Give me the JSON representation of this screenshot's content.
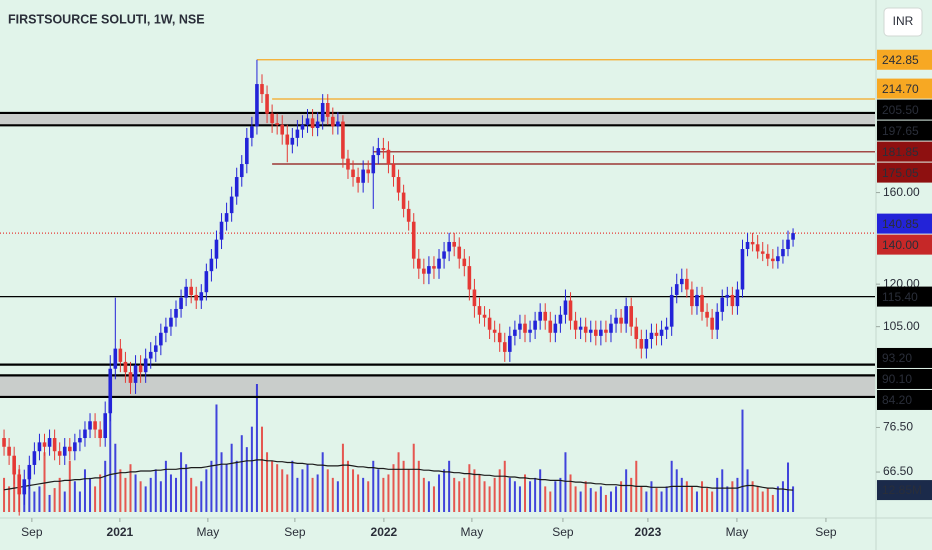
{
  "chart_data": {
    "type": "candlestick",
    "title": "FIRSTSOURCE SOLUTI, 1W, NSE",
    "currency": "INR",
    "log": true,
    "xlim": [
      -0.8,
      172.2
    ],
    "ylim": [
      57.2,
      293
    ],
    "xticks": [
      {
        "value": 5.5,
        "label": "Sep"
      },
      {
        "value": 22.9,
        "label": "2021"
      },
      {
        "value": 40.3,
        "label": "May"
      },
      {
        "value": 57.5,
        "label": "Sep"
      },
      {
        "value": 75.1,
        "label": "2022"
      },
      {
        "value": 92.5,
        "label": "May"
      },
      {
        "value": 110.5,
        "label": "Sep"
      },
      {
        "value": 127.3,
        "label": "2023"
      },
      {
        "value": 144.9,
        "label": "May"
      },
      {
        "value": 162.5,
        "label": "Sep"
      }
    ],
    "yticks": [
      {
        "value": 160,
        "label": "160.00"
      },
      {
        "value": 120,
        "label": "120.00"
      },
      {
        "value": 105,
        "label": "105.00"
      },
      {
        "value": 76.5,
        "label": "76.50"
      },
      {
        "value": 66.5,
        "label": "66.50"
      }
    ],
    "up_color": "#2323d8",
    "down_color": "#e53935",
    "open": [
      74,
      72,
      70,
      66,
      62,
      65,
      68,
      71,
      73,
      72,
      74,
      71,
      70,
      72,
      71,
      73,
      74,
      76,
      78,
      76,
      74,
      80,
      92,
      98,
      94,
      91,
      88,
      93,
      91,
      95,
      97,
      99,
      103,
      105,
      108,
      111,
      115,
      119,
      116,
      114,
      117,
      125,
      130,
      138,
      146,
      150,
      158,
      168,
      175,
      190,
      197,
      225,
      218,
      205,
      199,
      198,
      192,
      186,
      190,
      195,
      198,
      202,
      196,
      200,
      212,
      203,
      197,
      200,
      178,
      172,
      168,
      165,
      172,
      170,
      180,
      184,
      183,
      175,
      168,
      160,
      152,
      146,
      130,
      126,
      124,
      127,
      126,
      130,
      133,
      137,
      135,
      130,
      127,
      118,
      112,
      109,
      108,
      104,
      103,
      100,
      97,
      102,
      104,
      106,
      103,
      104,
      107,
      110,
      107,
      103,
      106,
      109,
      114,
      107,
      104,
      105,
      103,
      104,
      102,
      104,
      103,
      106,
      108,
      106,
      112,
      105,
      101,
      98,
      101,
      103,
      102,
      104,
      105,
      116,
      120,
      122,
      118,
      112,
      116,
      110,
      108,
      104,
      110,
      115,
      116,
      112,
      118,
      134,
      137,
      136,
      133,
      132,
      130,
      129,
      131,
      134,
      138
    ],
    "high": [
      76,
      74,
      72,
      68,
      67,
      70,
      73,
      75,
      75,
      76,
      76,
      73,
      74,
      74,
      75,
      76,
      78,
      80,
      80,
      78,
      83,
      96,
      115,
      101,
      97,
      94,
      96,
      96,
      98,
      100,
      102,
      106,
      108,
      111,
      114,
      118,
      122,
      122,
      119,
      120,
      128,
      134,
      142,
      150,
      155,
      163,
      173,
      180,
      196,
      203,
      242.85,
      232,
      224,
      211,
      205,
      204,
      198,
      196,
      201,
      204,
      208,
      208,
      206,
      218,
      218,
      209,
      206,
      204,
      183,
      177,
      173,
      177,
      177,
      185,
      190,
      190,
      188,
      180,
      172,
      164,
      156,
      150,
      134,
      130,
      131,
      131,
      134,
      137,
      141,
      141,
      139,
      134,
      131,
      122,
      115,
      112,
      111,
      107,
      106,
      103,
      105,
      107,
      109,
      109,
      107,
      110,
      113,
      113,
      110,
      109,
      112,
      118,
      117,
      110,
      108,
      108,
      107,
      107,
      107,
      107,
      109,
      111,
      111,
      115,
      115,
      108,
      104,
      104,
      106,
      106,
      107,
      108,
      119,
      124,
      126,
      126,
      121,
      119,
      119,
      113,
      111,
      113,
      118,
      119,
      119,
      121,
      138,
      141,
      141,
      140,
      137,
      136,
      134,
      135,
      138,
      142,
      143
    ],
    "low": [
      70,
      68,
      64,
      58,
      60,
      63,
      66,
      69,
      70,
      70,
      69,
      68,
      68,
      69,
      69,
      71,
      72,
      74,
      74,
      72,
      72,
      78,
      89,
      91,
      88,
      85,
      85,
      88,
      88,
      92,
      94,
      96,
      100,
      102,
      105,
      108,
      112,
      113,
      111,
      111,
      114,
      121,
      126,
      134,
      142,
      146,
      154,
      163,
      170,
      185,
      192,
      212,
      199,
      193,
      192,
      186,
      176,
      181,
      185,
      190,
      193,
      191,
      191,
      195,
      198,
      192,
      192,
      173,
      167,
      163,
      160,
      160,
      165,
      152,
      175,
      178,
      170,
      163,
      156,
      148,
      142,
      126,
      122,
      120,
      120,
      122,
      122,
      126,
      129,
      131,
      126,
      123,
      114,
      108,
      106,
      105,
      101,
      100,
      97,
      94,
      94,
      99,
      101,
      100,
      100,
      101,
      104,
      104,
      100,
      100,
      103,
      106,
      104,
      101,
      101,
      100,
      100,
      99,
      99,
      100,
      100,
      103,
      103,
      103,
      102,
      98,
      95,
      95,
      98,
      99,
      99,
      101,
      102,
      113,
      117,
      115,
      109,
      109,
      107,
      105,
      101,
      101,
      107,
      112,
      109,
      109,
      115,
      131,
      133,
      130,
      129,
      127,
      126,
      126,
      128,
      131,
      135
    ],
    "close": [
      72,
      70,
      66,
      62,
      65,
      68,
      71,
      73,
      72,
      74,
      71,
      70,
      72,
      71,
      73,
      74,
      76,
      78,
      76,
      74,
      80,
      92,
      98,
      94,
      91,
      88,
      93,
      91,
      95,
      97,
      99,
      103,
      105,
      108,
      111,
      115,
      119,
      116,
      114,
      117,
      125,
      130,
      138,
      146,
      150,
      158,
      168,
      175,
      190,
      197,
      225,
      218,
      205,
      199,
      198,
      192,
      186,
      190,
      195,
      198,
      202,
      196,
      200,
      212,
      203,
      197,
      200,
      178,
      172,
      168,
      165,
      172,
      170,
      180,
      184,
      183,
      175,
      168,
      160,
      152,
      146,
      130,
      126,
      124,
      127,
      126,
      130,
      133,
      137,
      135,
      130,
      127,
      118,
      112,
      109,
      108,
      104,
      103,
      100,
      97,
      102,
      104,
      106,
      103,
      104,
      107,
      110,
      107,
      103,
      106,
      109,
      114,
      107,
      104,
      105,
      103,
      104,
      102,
      104,
      103,
      106,
      108,
      106,
      112,
      105,
      101,
      98,
      101,
      103,
      102,
      104,
      105,
      116,
      120,
      122,
      118,
      112,
      116,
      110,
      108,
      104,
      110,
      115,
      116,
      112,
      118,
      134,
      137,
      136,
      133,
      132,
      130,
      129,
      131,
      134,
      138,
      140.85
    ],
    "volume": {
      "ylim": [
        0,
        300
      ],
      "ma_color": "#1b1b1b",
      "values": [
        20,
        15,
        30,
        25,
        18,
        22,
        12,
        15,
        35,
        10,
        14,
        20,
        12,
        30,
        18,
        12,
        25,
        20,
        15,
        22,
        30,
        75,
        40,
        25,
        20,
        28,
        22,
        18,
        15,
        20,
        25,
        18,
        30,
        22,
        20,
        35,
        28,
        20,
        15,
        18,
        25,
        30,
        63,
        35,
        28,
        40,
        30,
        45,
        38,
        50,
        75,
        50,
        35,
        30,
        28,
        25,
        22,
        30,
        20,
        25,
        28,
        20,
        22,
        35,
        25,
        20,
        18,
        40,
        30,
        25,
        22,
        20,
        18,
        30,
        25,
        20,
        22,
        28,
        35,
        30,
        25,
        40,
        30,
        20,
        18,
        15,
        22,
        25,
        30,
        20,
        18,
        20,
        28,
        25,
        22,
        18,
        15,
        20,
        25,
        30,
        20,
        18,
        15,
        22,
        18,
        20,
        25,
        15,
        12,
        18,
        20,
        35,
        22,
        15,
        12,
        18,
        14,
        12,
        15,
        10,
        12,
        15,
        18,
        25,
        20,
        30,
        15,
        12,
        18,
        14,
        12,
        15,
        30,
        25,
        20,
        18,
        15,
        12,
        18,
        14,
        12,
        20,
        25,
        15,
        18,
        20,
        60,
        25,
        18,
        15,
        12,
        14,
        10,
        15,
        18,
        29,
        15
      ],
      "ma": [
        13,
        13.5,
        14,
        14.5,
        15,
        15.5,
        16,
        16.5,
        17,
        17.5,
        18,
        18,
        18.5,
        18.5,
        19,
        19,
        19.5,
        19.5,
        20,
        20,
        21,
        22,
        22.5,
        23,
        23,
        23.5,
        23.5,
        24,
        24,
        24,
        24.5,
        24.5,
        25,
        25,
        25,
        25.5,
        25.5,
        26,
        26,
        26,
        26.5,
        27,
        27.5,
        28,
        28,
        28.5,
        29,
        29.5,
        30,
        30,
        30.5,
        30.5,
        30,
        30,
        29.5,
        29.5,
        29,
        29,
        28.5,
        28.5,
        28,
        28,
        27.5,
        27.5,
        27,
        27,
        27,
        27.5,
        27.5,
        27,
        26.5,
        26.5,
        26,
        26,
        25.5,
        25.5,
        25,
        25,
        25,
        25,
        25,
        25,
        25,
        24.5,
        24.5,
        24,
        24,
        23.5,
        23.5,
        23,
        23,
        22.5,
        22.5,
        22,
        22,
        21.5,
        21.5,
        21,
        21,
        21,
        20.5,
        20.5,
        20,
        20,
        19.5,
        19.5,
        19,
        19,
        18.5,
        18.5,
        18.5,
        18,
        18,
        17.5,
        17.5,
        17,
        17,
        16.5,
        16.5,
        16,
        16,
        16,
        15.5,
        15.5,
        15.5,
        15,
        15,
        15,
        14.5,
        14.5,
        14.5,
        14.5,
        15,
        15,
        15,
        15,
        15,
        15,
        14.5,
        14.5,
        14,
        14,
        14,
        14,
        14,
        14,
        15,
        15.5,
        15.5,
        15,
        14.5,
        14,
        14,
        13.5,
        13.5,
        13,
        12.85
      ],
      "label": {
        "value": 12.85,
        "label": "12.85M"
      }
    },
    "zones": [
      {
        "from": 197.65,
        "to": 205.5,
        "color": "#c9cdcb"
      },
      {
        "from": 84.2,
        "to": 90.1,
        "color": "#c9cdcb"
      }
    ],
    "levels": [
      {
        "value": 242.85,
        "label": "242.85",
        "color": "#f7a823",
        "text_color": "#1b1b1b",
        "line_color": "#f7a823",
        "start": 50,
        "style": "solid"
      },
      {
        "value": 214.7,
        "label": "214.70",
        "color": "#f7a823",
        "text_color": "#1b1b1b",
        "line_color": "#f7a823",
        "start": 53,
        "style": "solid"
      },
      {
        "value": 205.5,
        "label": "205.50",
        "color": "#000000",
        "text_color": "#ffffff",
        "line_color": "#000000",
        "start": null,
        "style": "thick"
      },
      {
        "value": 197.65,
        "label": "197.65",
        "color": "#000000",
        "text_color": "#ffffff",
        "line_color": "#000000",
        "start": null,
        "style": "thick"
      },
      {
        "value": 181.85,
        "label": "181.85",
        "color": "#8e1010",
        "text_color": "#ffffff",
        "line_color": "#8e1010",
        "start": 73,
        "style": "solid"
      },
      {
        "value": 175.05,
        "label": "175.05",
        "color": "#8e1010",
        "text_color": "#ffffff",
        "line_color": "#8e1010",
        "start": 53,
        "style": "solid"
      },
      {
        "value": 140.85,
        "label": "140.85",
        "color": "#2323d8",
        "text_color": "#ffffff",
        "line_color": "#e53935",
        "start": null,
        "style": "dotted"
      },
      {
        "value": 140,
        "label": "140.00",
        "color": "#c62828",
        "text_color": "#ffffff",
        "line_color": null,
        "start": null,
        "style": "none"
      },
      {
        "value": 115.4,
        "label": "115.40",
        "color": "#000000",
        "text_color": "#ffffff",
        "line_color": "#000000",
        "start": null,
        "style": "solid"
      },
      {
        "value": 93.2,
        "label": "93.20",
        "color": "#000000",
        "text_color": "#ffffff",
        "line_color": "#000000",
        "start": null,
        "style": "thick"
      },
      {
        "value": 90.1,
        "label": "90.10",
        "color": "#000000",
        "text_color": "#ffffff",
        "line_color": "#000000",
        "start": null,
        "style": "thick"
      },
      {
        "value": 84.2,
        "label": "84.20",
        "color": "#000000",
        "text_color": "#ffffff",
        "line_color": "#000000",
        "start": null,
        "style": "thick"
      }
    ]
  }
}
